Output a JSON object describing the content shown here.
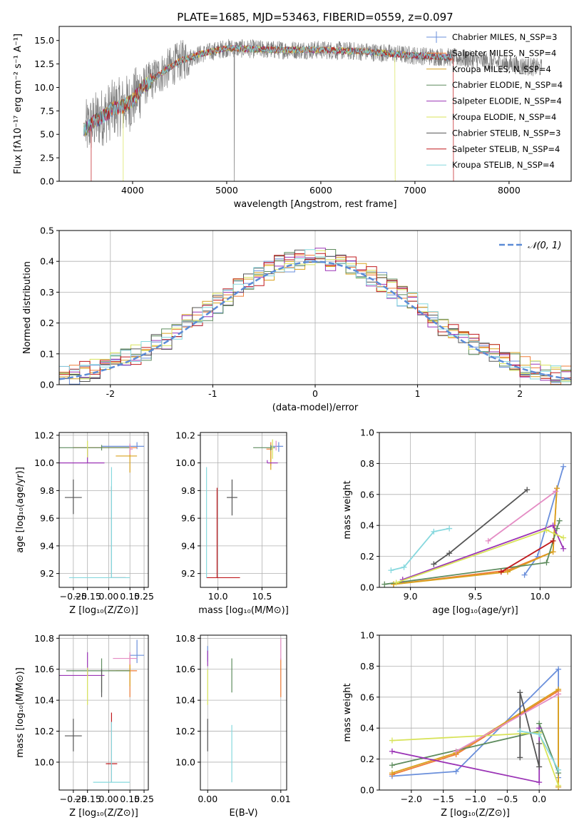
{
  "colors": [
    "#6a8fdb",
    "#ef7b35",
    "#d9a21e",
    "#5e8c5e",
    "#9b34b6",
    "#d8e35a",
    "#555555",
    "#c0191d",
    "#86d8de",
    "#e48cc4"
  ],
  "chart_data": [
    {
      "type": "line",
      "title": "PLATE=1685, MJD=53463, FIBERID=0559, z=0.097",
      "xlabel": "wavelength [Angstrom, rest frame]",
      "ylabel": "Flux [fλ10⁻¹⁷ erg cm⁻² s⁻¹ A⁻¹]",
      "xlim": [
        3220,
        8660
      ],
      "ylim": [
        0,
        16.5
      ],
      "xticks": [
        4000,
        5000,
        6000,
        7000,
        8000
      ],
      "yticks": [
        0.0,
        2.5,
        5.0,
        7.5,
        10.0,
        12.5,
        15.0
      ],
      "legend_position": "right",
      "legend": [
        "Chabrier MILES, N_SSP=3",
        "Salpeter MILES, N_SSP=4",
        "Kroupa MILES, N_SSP=4",
        "Chabrier ELODIE, N_SSP=4",
        "Salpeter ELODIE, N_SSP=4",
        "Kroupa ELODIE, N_SSP=4",
        "Chabrier STELIB, N_SSP=3",
        "Salpeter STELIB, N_SSP=4",
        "Kroupa STELIB, N_SSP=4"
      ],
      "data_envelope": {
        "x": [
          3500,
          3600,
          3700,
          3800,
          3900,
          4000,
          4100,
          4300,
          4500,
          4700,
          5000,
          5500,
          6000,
          6500,
          7000,
          7400
        ],
        "y": [
          5.5,
          6.4,
          7.0,
          7.8,
          8.0,
          8.6,
          10.0,
          11.5,
          12.8,
          13.5,
          14.2,
          14.0,
          14.0,
          13.8,
          13.4,
          13.2
        ]
      },
      "data_continues_to": 8350,
      "truncations": [
        {
          "series": "Kroupa ELODIE, N_SSP=4",
          "x": [
            3900,
            6790
          ]
        },
        {
          "series": "Salpeter STELIB, N_SSP=4",
          "x": [
            3560,
            7410
          ]
        }
      ]
    },
    {
      "type": "histogram",
      "xlabel": "(data-model)/error",
      "ylabel": "Normed distribution",
      "xlim": [
        -2.5,
        2.5
      ],
      "ylim": [
        0,
        0.5
      ],
      "xticks": [
        -2,
        -1,
        0,
        1,
        2
      ],
      "yticks": [
        0.0,
        0.1,
        0.2,
        0.3,
        0.4,
        0.5
      ],
      "reference": {
        "label": "𝒩(0, 1)",
        "type": "normal",
        "mean": 0,
        "sigma": 1
      },
      "bin_width": 0.1,
      "series_count": 9,
      "legend_position": "top-right"
    },
    {
      "type": "errorbar",
      "xlabel": "Z [log₁₀(Z/Z⊙)]",
      "ylabel": "age  [log₁₀(age/yr)]",
      "xlim": [
        -0.35,
        0.28
      ],
      "ylim": [
        9.1,
        10.22
      ],
      "xticks": [
        -0.25,
        -0.15,
        0.0,
        0.15,
        0.25
      ],
      "xtick_labels": [
        "−0.25",
        "−0.15",
        "0.00",
        "0.15",
        "0.25"
      ],
      "yticks": [
        9.2,
        9.4,
        9.6,
        9.8,
        10.0,
        10.2
      ],
      "ytick_labels": [
        "9.2",
        "9.4",
        "9.6",
        "9.8",
        "10.0",
        "10.2"
      ],
      "points": [
        {
          "c": 0,
          "x": 0.2,
          "xerr": [
            0.25,
            0.05
          ],
          "y": 10.12,
          "yerr": [
            0.02,
            0.03
          ]
        },
        {
          "c": 1,
          "x": 0.15,
          "xerr": [
            0.4,
            0.05
          ],
          "y": 10.11,
          "yerr": [
            0.02,
            0.02
          ]
        },
        {
          "c": 2,
          "x": 0.15,
          "xerr": [
            0.1,
            0.05
          ],
          "y": 10.05,
          "yerr": [
            0.12,
            0.08
          ]
        },
        {
          "c": 3,
          "x": -0.05,
          "xerr": [
            0.3,
            0.2
          ],
          "y": 10.11,
          "yerr": [
            0.02,
            0.02
          ]
        },
        {
          "c": 4,
          "x": -0.15,
          "xerr": [
            0.2,
            0.12
          ],
          "y": 10.0,
          "yerr": [
            0.0,
            0.1
          ]
        },
        {
          "c": 5,
          "x": -0.15,
          "xerr": [
            0.0,
            0.0
          ],
          "y": 10.1,
          "yerr": [
            0.06,
            0.06
          ]
        },
        {
          "c": 6,
          "x": -0.25,
          "xerr": [
            0.06,
            0.06
          ],
          "y": 9.75,
          "yerr": [
            0.12,
            0.13
          ]
        },
        {
          "c": 6,
          "x": 0.02,
          "xerr": [
            0.0,
            0.0
          ],
          "y": 9.5,
          "yerr": [
            0.33,
            0.33
          ]
        },
        {
          "c": 7,
          "x": 0.02,
          "xerr": [
            0.0,
            0.1
          ],
          "y": 9.17,
          "yerr": [
            0.0,
            0.0
          ]
        },
        {
          "c": 8,
          "x": 0.02,
          "xerr": [
            0.3,
            0.13
          ],
          "y": 9.17,
          "yerr": [
            0.0,
            0.8
          ]
        },
        {
          "c": 9,
          "x": 0.15,
          "xerr": [
            0.0,
            0.02
          ],
          "y": 10.1,
          "yerr": [
            0.04,
            0.04
          ]
        }
      ]
    },
    {
      "type": "errorbar",
      "xlabel": "mass [log₁₀(M/M⊙)]",
      "ylabel": "",
      "xlim": [
        9.8,
        10.78
      ],
      "ylim": [
        9.1,
        10.22
      ],
      "xticks": [
        10.0,
        10.5
      ],
      "xtick_labels": [
        "10.0",
        "10.5"
      ],
      "yticks": [
        9.2,
        9.4,
        9.6,
        9.8,
        10.0,
        10.2
      ],
      "ytick_labels": [
        "9.2",
        "9.4",
        "9.6",
        "9.8",
        "10.0",
        "10.2"
      ],
      "points": [
        {
          "c": 0,
          "x": 10.69,
          "xerr": [
            0.09,
            0.05
          ],
          "y": 10.12,
          "yerr": [
            0.04,
            0.03
          ]
        },
        {
          "c": 1,
          "x": 10.6,
          "xerr": [
            0.05,
            0.02
          ],
          "y": 10.1,
          "yerr": [
            0.12,
            0.05
          ]
        },
        {
          "c": 2,
          "x": 10.6,
          "xerr": [
            0.0,
            0.0
          ],
          "y": 10.05,
          "yerr": [
            0.1,
            0.06
          ]
        },
        {
          "c": 3,
          "x": 10.6,
          "xerr": [
            0.2,
            0.05
          ],
          "y": 10.11,
          "yerr": [
            0.02,
            0.02
          ]
        },
        {
          "c": 4,
          "x": 10.56,
          "xerr": [
            0.0,
            0.12
          ],
          "y": 10.0,
          "yerr": [
            0.0,
            0.02
          ]
        },
        {
          "c": 5,
          "x": 10.62,
          "xerr": [
            0.0,
            0.0
          ],
          "y": 10.1,
          "yerr": [
            0.07,
            0.07
          ]
        },
        {
          "c": 6,
          "x": 10.16,
          "xerr": [
            0.06,
            0.06
          ],
          "y": 9.75,
          "yerr": [
            0.13,
            0.13
          ]
        },
        {
          "c": 7,
          "x": 9.99,
          "xerr": [
            0.12,
            0.26
          ],
          "y": 9.17,
          "yerr": [
            0.0,
            0.65
          ]
        },
        {
          "c": 8,
          "x": 9.87,
          "xerr": [
            0.0,
            0.0
          ],
          "y": 9.17,
          "yerr": [
            0.0,
            0.8
          ]
        },
        {
          "c": 9,
          "x": 10.66,
          "xerr": [
            0.0,
            0.0
          ],
          "y": 10.12,
          "yerr": [
            0.03,
            0.04
          ]
        }
      ]
    },
    {
      "type": "line",
      "xlabel": "age  [log₁₀(age/yr)]",
      "ylabel": "mass weight",
      "xlim": [
        8.76,
        10.24
      ],
      "ylim": [
        0.0,
        1.0
      ],
      "xticks": [
        9.0,
        9.5,
        10.0
      ],
      "xtick_labels": [
        "9.0",
        "9.5",
        "10.0"
      ],
      "yticks": [
        0.0,
        0.2,
        0.4,
        0.6,
        0.8,
        1.0
      ],
      "ytick_labels": [
        "0.0",
        "0.2",
        "0.4",
        "0.6",
        "0.8",
        "1.0"
      ],
      "series": [
        {
          "c": 0,
          "x": [
            9.88,
            9.98,
            10.18
          ],
          "y": [
            0.08,
            0.2,
            0.78
          ]
        },
        {
          "c": 1,
          "x": [
            8.87,
            9.75,
            10.1,
            10.13
          ],
          "y": [
            0.02,
            0.11,
            0.23,
            0.64
          ]
        },
        {
          "c": 2,
          "x": [
            8.87,
            9.75,
            10.1,
            10.13
          ],
          "y": [
            0.02,
            0.1,
            0.23,
            0.64
          ]
        },
        {
          "c": 3,
          "x": [
            8.8,
            10.05,
            10.13,
            10.15
          ],
          "y": [
            0.02,
            0.16,
            0.38,
            0.43
          ]
        },
        {
          "c": 4,
          "x": [
            8.94,
            10.1,
            10.18
          ],
          "y": [
            0.05,
            0.4,
            0.25
          ]
        },
        {
          "c": 5,
          "x": [
            8.89,
            10.05,
            10.18
          ],
          "y": [
            0.03,
            0.37,
            0.32
          ]
        },
        {
          "c": 6,
          "x": [
            9.18,
            9.3,
            9.9
          ],
          "y": [
            0.15,
            0.22,
            0.63
          ]
        },
        {
          "c": 7,
          "x": [
            9.7,
            10.1
          ],
          "y": [
            0.1,
            0.3
          ]
        },
        {
          "c": 8,
          "x": [
            8.85,
            8.95,
            9.18,
            9.3
          ],
          "y": [
            0.11,
            0.13,
            0.36,
            0.38
          ]
        },
        {
          "c": 9,
          "x": [
            9.6,
            10.12
          ],
          "y": [
            0.3,
            0.62
          ]
        }
      ]
    },
    {
      "type": "errorbar",
      "xlabel": "Z [log₁₀(Z/Z⊙)]",
      "ylabel": "mass [log₁₀(M/M⊙)]",
      "xlim": [
        -0.35,
        0.28
      ],
      "ylim": [
        9.82,
        10.82
      ],
      "xticks": [
        -0.25,
        -0.15,
        0.0,
        0.15,
        0.25
      ],
      "xtick_labels": [
        "−0.25",
        "−0.15",
        "0.00",
        "0.15",
        "0.25"
      ],
      "yticks": [
        10.0,
        10.2,
        10.4,
        10.6,
        10.8
      ],
      "ytick_labels": [
        "10.0",
        "10.2",
        "10.4",
        "10.6",
        "10.8"
      ],
      "points": [
        {
          "c": 0,
          "x": 0.2,
          "xerr": [
            0.05,
            0.05
          ],
          "y": 10.69,
          "yerr": [
            0.05,
            0.1
          ]
        },
        {
          "c": 1,
          "x": 0.15,
          "xerr": [
            0.15,
            0.05
          ],
          "y": 10.59,
          "yerr": [
            0.17,
            0.1
          ]
        },
        {
          "c": 2,
          "x": 0.15,
          "xerr": [
            0.1,
            0.0
          ],
          "y": 10.59,
          "yerr": [
            0.1,
            0.05
          ]
        },
        {
          "c": 3,
          "x": -0.05,
          "xerr": [
            0.25,
            0.2
          ],
          "y": 10.59,
          "yerr": [
            0.14,
            0.08
          ]
        },
        {
          "c": 4,
          "x": -0.15,
          "xerr": [
            0.2,
            0.12
          ],
          "y": 10.56,
          "yerr": [
            0.0,
            0.15
          ]
        },
        {
          "c": 5,
          "x": -0.15,
          "xerr": [
            0.0,
            0.0
          ],
          "y": 10.55,
          "yerr": [
            0.18,
            0.06
          ]
        },
        {
          "c": 6,
          "x": -0.25,
          "xerr": [
            0.06,
            0.06
          ],
          "y": 10.17,
          "yerr": [
            0.1,
            0.11
          ]
        },
        {
          "c": 6,
          "x": -0.05,
          "xerr": [
            0.0,
            0.0
          ],
          "y": 10.55,
          "yerr": [
            0.13,
            0.05
          ]
        },
        {
          "c": 7,
          "x": 0.02,
          "xerr": [
            0.04,
            0.04
          ],
          "y": 9.99,
          "yerr": [
            0.12,
            0.33
          ]
        },
        {
          "c": 8,
          "x": 0.02,
          "xerr": [
            0.13,
            0.13
          ],
          "y": 9.87,
          "yerr": [
            0.0,
            0.39
          ]
        },
        {
          "c": 9,
          "x": 0.15,
          "xerr": [
            0.12,
            0.05
          ],
          "y": 10.67,
          "yerr": [
            0.04,
            0.04
          ]
        }
      ]
    },
    {
      "type": "errorbar",
      "xlabel": "E(B-V)",
      "ylabel": "",
      "xlim": [
        -0.001,
        0.0108
      ],
      "ylim": [
        9.82,
        10.82
      ],
      "xticks": [
        0.0,
        0.01
      ],
      "xtick_labels": [
        "0.00",
        "0.01"
      ],
      "yticks": [
        10.0,
        10.2,
        10.4,
        10.6,
        10.8
      ],
      "ytick_labels": [
        "10.0",
        "10.2",
        "10.4",
        "10.6",
        "10.8"
      ],
      "points": [
        {
          "c": 0,
          "x": 0.0,
          "xerr": [
            0.0,
            0.0
          ],
          "y": 10.69,
          "yerr": [
            0.04,
            0.06
          ]
        },
        {
          "c": 1,
          "x": 0.01,
          "xerr": [
            0.0,
            0.0
          ],
          "y": 10.59,
          "yerr": [
            0.17,
            0.08
          ]
        },
        {
          "c": 3,
          "x": 0.0033,
          "xerr": [
            0.0,
            0.0
          ],
          "y": 10.59,
          "yerr": [
            0.14,
            0.08
          ]
        },
        {
          "c": 4,
          "x": 0.0,
          "xerr": [
            0.0,
            0.0
          ],
          "y": 10.67,
          "yerr": [
            0.05,
            0.05
          ]
        },
        {
          "c": 5,
          "x": 0.0,
          "xerr": [
            0.0,
            0.0
          ],
          "y": 10.55,
          "yerr": [
            0.18,
            0.05
          ]
        },
        {
          "c": 6,
          "x": 0.0,
          "xerr": [
            0.0,
            0.0
          ],
          "y": 10.17,
          "yerr": [
            0.1,
            0.11
          ]
        },
        {
          "c": 8,
          "x": 0.0033,
          "xerr": [
            0.0,
            0.0
          ],
          "y": 9.99,
          "yerr": [
            0.12,
            0.25
          ]
        },
        {
          "c": 9,
          "x": 0.01,
          "xerr": [
            0.0,
            0.0
          ],
          "y": 10.69,
          "yerr": [
            0.03,
            0.11
          ]
        }
      ]
    },
    {
      "type": "line",
      "xlabel": "Z [log₁₀(Z/Z⊙)]",
      "ylabel": "mass weight",
      "xlim": [
        -2.5,
        0.5
      ],
      "ylim": [
        0.0,
        1.0
      ],
      "xticks": [
        -2.0,
        -1.5,
        -1.0,
        -0.5,
        0.0
      ],
      "xtick_labels": [
        "−2.0",
        "−1.5",
        "−1.0",
        "−0.5",
        "0.0"
      ],
      "yticks": [
        0.0,
        0.2,
        0.4,
        0.6,
        0.8,
        1.0
      ],
      "ytick_labels": [
        "0.0",
        "0.2",
        "0.4",
        "0.6",
        "0.8",
        "1.0"
      ],
      "series": [
        {
          "c": 0,
          "x": [
            -2.3,
            -1.3,
            0.3,
            0.3
          ],
          "y": [
            0.09,
            0.12,
            0.78,
            0.08
          ]
        },
        {
          "c": 1,
          "x": [
            -2.3,
            -1.3,
            0.3,
            0.3
          ],
          "y": [
            0.1,
            0.23,
            0.64,
            0.02
          ]
        },
        {
          "c": 2,
          "x": [
            -2.3,
            -1.3,
            0.3,
            0.3
          ],
          "y": [
            0.11,
            0.24,
            0.65,
            0.02
          ]
        },
        {
          "c": 3,
          "x": [
            -2.3,
            0.0,
            0.0,
            0.3
          ],
          "y": [
            0.16,
            0.38,
            0.43,
            0.11
          ]
        },
        {
          "c": 4,
          "x": [
            -2.3,
            0.0,
            0.0
          ],
          "y": [
            0.25,
            0.05,
            0.4
          ]
        },
        {
          "c": 5,
          "x": [
            -2.3,
            0.0,
            0.3
          ],
          "y": [
            0.32,
            0.37,
            0.03
          ]
        },
        {
          "c": 6,
          "x": [
            -0.3,
            -0.3,
            0.0,
            0.0
          ],
          "y": [
            0.21,
            0.63,
            0.15,
            0.3
          ]
        },
        {
          "c": 8,
          "x": [
            -0.3,
            0.0,
            0.3
          ],
          "y": [
            0.38,
            0.36,
            0.13
          ]
        },
        {
          "c": 9,
          "x": [
            -1.3,
            0.3
          ],
          "y": [
            0.25,
            0.62
          ]
        }
      ]
    }
  ]
}
